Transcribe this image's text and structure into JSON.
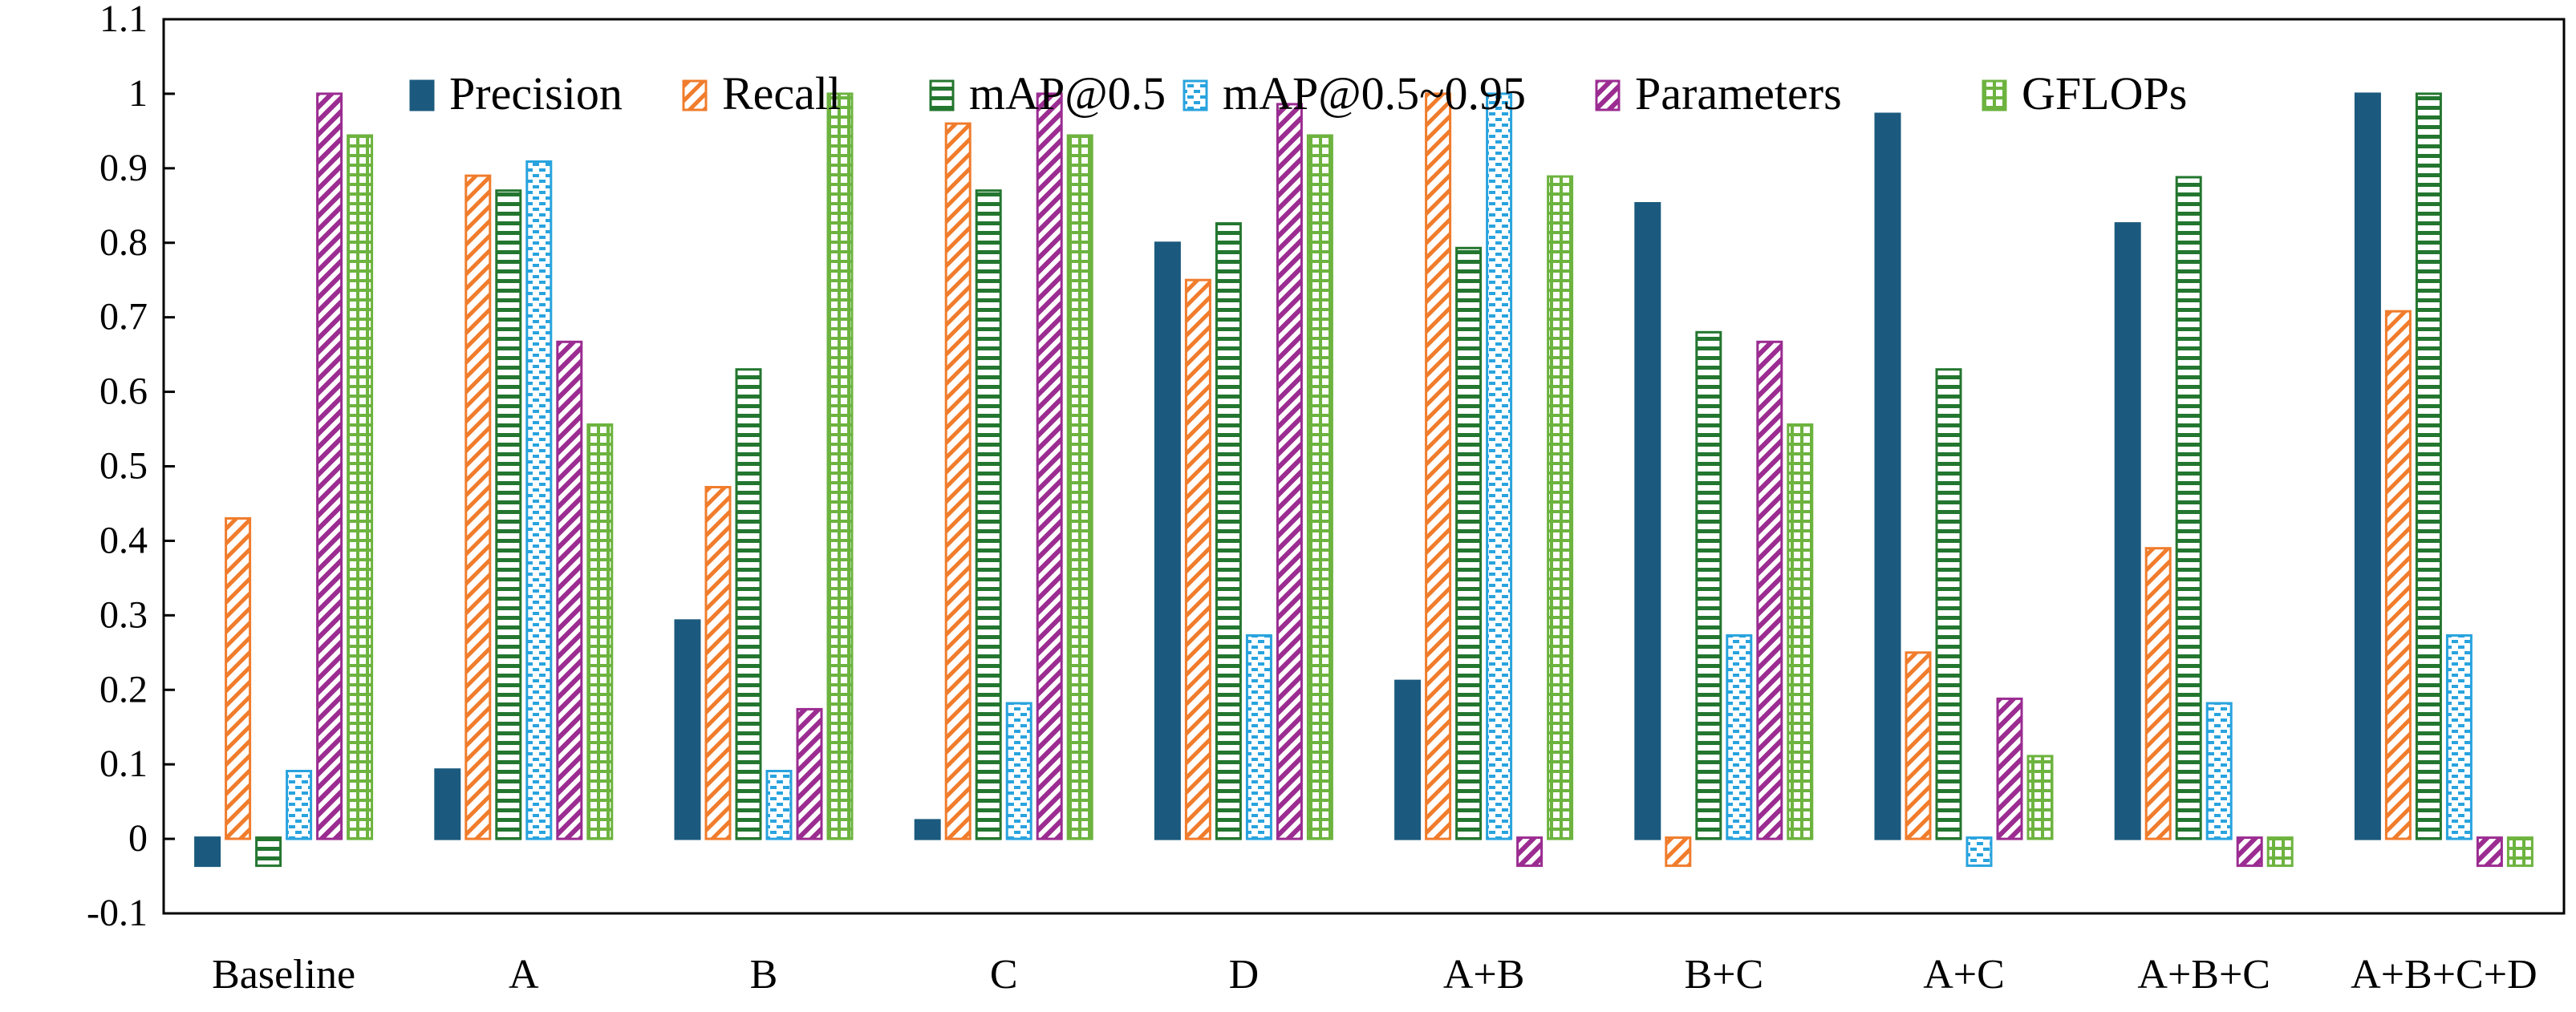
{
  "chart_data": {
    "type": "bar",
    "title": "",
    "xlabel": "",
    "ylabel": "",
    "ylim": [
      -0.1,
      1.1
    ],
    "grid": false,
    "legend_position": "top",
    "yticks": [
      "-0.1",
      "0",
      "0.1",
      "0.2",
      "0.3",
      "0.4",
      "0.5",
      "0.6",
      "0.7",
      "0.8",
      "0.9",
      "1",
      "1.1"
    ],
    "categories": [
      "Baseline",
      "A",
      "B",
      "C",
      "D",
      "A+B",
      "B+C",
      "A+C",
      "A+B+C",
      "A+B+C+D"
    ],
    "series": [
      {
        "name": "Precision",
        "color": "#1b5a7e",
        "pattern": "solid",
        "values": [
          0.0,
          0.093,
          0.293,
          0.025,
          0.8,
          0.212,
          0.853,
          0.973,
          0.826,
          1.0
        ]
      },
      {
        "name": "Recall",
        "color": "#f07c2c",
        "pattern": "diagonal",
        "values": [
          0.43,
          0.89,
          0.472,
          0.96,
          0.75,
          1.0,
          0.0,
          0.25,
          0.39,
          0.708
        ]
      },
      {
        "name": "mAP@0.5",
        "color": "#23762f",
        "pattern": "horizontal",
        "values": [
          0.0,
          0.87,
          0.63,
          0.87,
          0.826,
          0.793,
          0.68,
          0.63,
          0.888,
          1.0
        ]
      },
      {
        "name": "mAP@0.5~0.95",
        "color": "#29a3de",
        "pattern": "dashed",
        "values": [
          0.091,
          0.909,
          0.091,
          0.182,
          0.273,
          1.0,
          0.273,
          0.0,
          0.182,
          0.273
        ]
      },
      {
        "name": "Parameters",
        "color": "#9b2c91",
        "pattern": "diagonal-dense",
        "values": [
          1.0,
          0.667,
          0.174,
          1.0,
          0.986,
          0.0,
          0.667,
          0.188,
          0.0,
          0.0
        ]
      },
      {
        "name": "GFLOPs",
        "color": "#6db33f",
        "pattern": "grid",
        "values": [
          0.944,
          0.556,
          1.0,
          0.944,
          0.944,
          0.889,
          0.556,
          0.111,
          0.0,
          0.0
        ]
      }
    ]
  }
}
